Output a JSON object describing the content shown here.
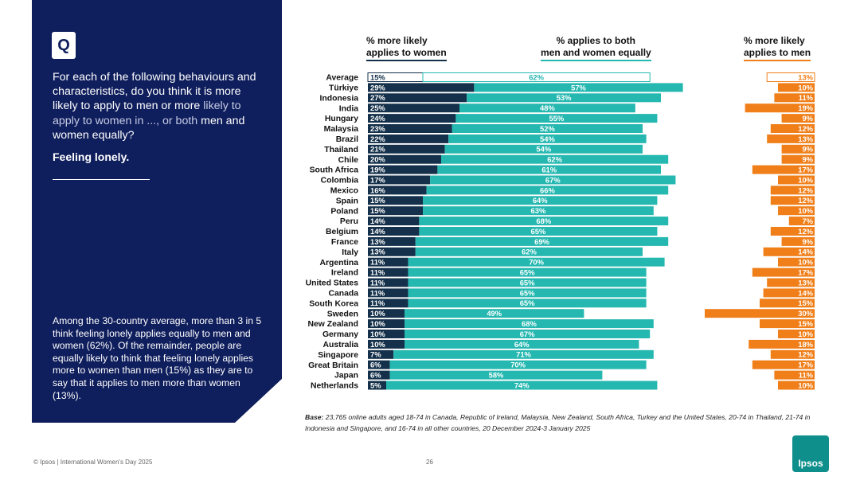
{
  "left_panel": {
    "q_badge": "Q",
    "question_main": "For each of the following behaviours and characteristics, do you think it is more likely to apply to men or more",
    "question_faint": "likely to apply to women in ..., or both",
    "question_end": "men and women equally?",
    "topic": "Feeling lonely.",
    "summary": "Among the 30-country average, more than 3 in 5 think feeling lonely applies equally to men and women (62%). Of the remainder, people are equally likely to think that feeling lonely applies more to women than men (15%) as they are to say that it applies to men more than women (13%)."
  },
  "column_headers": {
    "women": [
      "% more likely",
      "applies to women"
    ],
    "both": [
      "% applies to both",
      "men and women equally"
    ],
    "men": [
      "% more likely",
      "applies to men"
    ]
  },
  "colors": {
    "women": "#14304a",
    "both": "#25b8b0",
    "men": "#f07f1a",
    "panel": "#0f1e5c"
  },
  "chart_data": {
    "type": "bar",
    "orientation": "horizontal",
    "stacked": true,
    "categories": [
      "Average",
      "Türkiye",
      "Indonesia",
      "India",
      "Hungary",
      "Malaysia",
      "Brazil",
      "Thailand",
      "Chile",
      "South Africa",
      "Colombia",
      "Mexico",
      "Spain",
      "Poland",
      "Peru",
      "Belgium",
      "France",
      "Italy",
      "Argentina",
      "Ireland",
      "United States",
      "Canada",
      "South Korea",
      "Sweden",
      "New Zealand",
      "Germany",
      "Australia",
      "Singapore",
      "Great Britain",
      "Japan",
      "Netherlands"
    ],
    "series": [
      {
        "name": "% more likely applies to women",
        "values": [
          15,
          29,
          27,
          25,
          24,
          23,
          22,
          21,
          20,
          19,
          17,
          16,
          15,
          15,
          14,
          14,
          13,
          13,
          11,
          11,
          11,
          11,
          11,
          10,
          10,
          10,
          10,
          7,
          6,
          6,
          5
        ]
      },
      {
        "name": "% applies to both men and women equally",
        "values": [
          62,
          57,
          53,
          48,
          55,
          52,
          54,
          54,
          62,
          61,
          67,
          66,
          64,
          63,
          68,
          65,
          69,
          62,
          70,
          65,
          65,
          65,
          65,
          49,
          68,
          67,
          64,
          71,
          70,
          58,
          74
        ]
      },
      {
        "name": "% more likely applies to men",
        "values": [
          13,
          10,
          11,
          19,
          9,
          12,
          13,
          9,
          9,
          17,
          10,
          12,
          12,
          10,
          7,
          12,
          9,
          14,
          10,
          17,
          13,
          14,
          15,
          30,
          15,
          10,
          18,
          12,
          17,
          11,
          10
        ]
      }
    ],
    "unit": "%",
    "highlighted_category": "Average"
  },
  "base_note": {
    "label": "Base:",
    "text": "23,765 online adults aged 18-74 in Canada, Republic of Ireland, Malaysia, New Zealand, South Africa, Turkey and the United States, 20-74 in Thailand, 21-74 in Indonesia and Singapore, and 16-74 in all other countries, 20 December 2024-3 January 2025"
  },
  "footer": {
    "source": "© Ipsos | International Women's Day 2025",
    "page_number": "26",
    "logo_text": "Ipsos"
  }
}
